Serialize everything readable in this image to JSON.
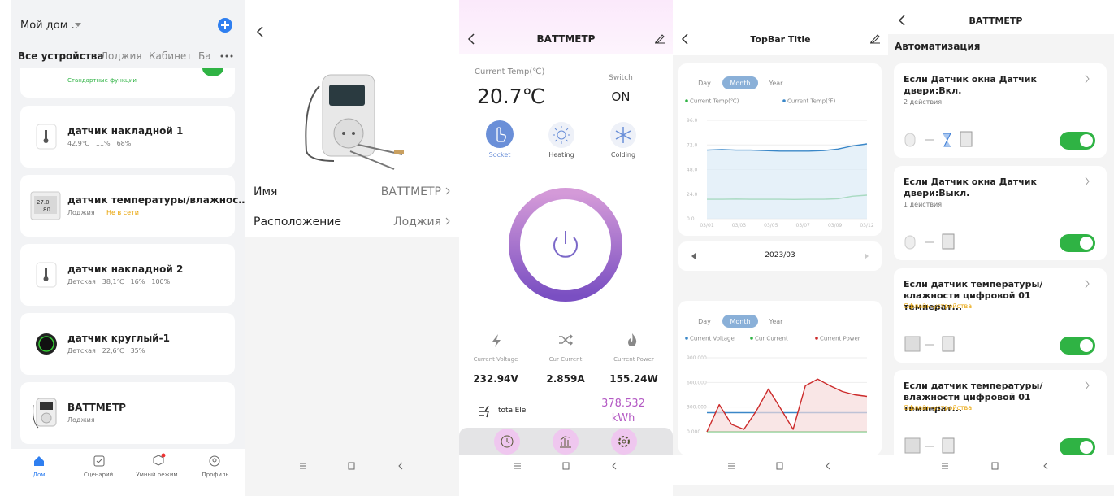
{
  "home_screen": {
    "home_name": "Мой дом ..",
    "tabs": [
      "Все устройства",
      "Лоджия",
      "Кабинет",
      "Ба"
    ],
    "devices": [
      {
        "subtitle": "Стандартные функции"
      },
      {
        "name": "датчик накладной 1",
        "readings": [
          "42,9℃",
          "11%",
          "68%"
        ]
      },
      {
        "name": "датчик температуры/влажнос…",
        "room": "Лоджия",
        "status": "Не в сети"
      },
      {
        "name": "датчик накладной 2",
        "room": "Детская",
        "readings": [
          "38,1℃",
          "16%",
          "100%"
        ]
      },
      {
        "name": "датчик круглый-1",
        "room": "Детская",
        "readings": [
          "22,6℃",
          "35%"
        ]
      },
      {
        "name": "ВАТТМЕТР",
        "room": "Лоджия"
      }
    ],
    "nav": [
      "Дом",
      "Сценарий",
      "Умный режим",
      "Профиль"
    ]
  },
  "device_info_screen": {
    "rows": [
      {
        "label": "Имя",
        "value": "ВАТТМЕТР"
      },
      {
        "label": "Расположение",
        "value": "Лоджия"
      }
    ]
  },
  "meter_screen": {
    "title": "ВАТТМЕТР",
    "temp_label": "Current Temp(℃)",
    "temp": "20.7℃",
    "switch_label": "Switch",
    "switch_state": "ON",
    "modes": [
      "Socket",
      "Heating",
      "Colding"
    ],
    "metrics": [
      {
        "label": "Current Voltage",
        "value": "232.94V"
      },
      {
        "label": "Cur Current",
        "value": "2.859A"
      },
      {
        "label": "Current Power",
        "value": "155.24W"
      }
    ],
    "total_label": "totalEle",
    "total_value": "378.532",
    "total_unit": "kWh"
  },
  "stats_screen": {
    "title": "TopBar Title",
    "date": "2023/03",
    "charts": [
      {
        "tabs": [
          "Day",
          "Month",
          "Year"
        ],
        "ylim": [
          0,
          96
        ],
        "yticks": [
          {
            "value": 96,
            "label": "96.0"
          },
          {
            "value": 72,
            "label": "72.0"
          },
          {
            "value": 48,
            "label": "48.0"
          },
          {
            "value": 24,
            "label": "24.0"
          },
          {
            "value": 0,
            "label": "0.0"
          }
        ],
        "x_labels": [
          "03/01",
          "03/03",
          "03/05",
          "03/07",
          "03/09",
          "03/12"
        ],
        "series": [
          {
            "name": "Current Temp(℃)",
            "color": "#2fb344",
            "values": [
              19,
              19,
              19.2,
              19,
              19,
              19,
              18.8,
              19,
              19,
              19.5,
              22,
              23
            ]
          },
          {
            "name": "Current Temp(℉)",
            "color": "#3a87c8",
            "values": [
              67,
              67.5,
              67,
              67,
              66.5,
              66,
              66,
              66,
              66.5,
              68,
              71,
              73
            ]
          }
        ]
      },
      {
        "tabs": [
          "Day",
          "Month",
          "Year"
        ],
        "ylim": [
          0,
          900
        ],
        "yticks": [
          {
            "value": 900,
            "label": "900.000"
          },
          {
            "value": 600,
            "label": "600.000"
          },
          {
            "value": 300,
            "label": "300.000"
          },
          {
            "value": 0,
            "label": "0.000"
          }
        ],
        "series": [
          {
            "name": "Current Voltage",
            "color": "#3a87c8",
            "values": [
              232,
              232,
              232,
              232,
              232,
              232,
              232,
              232,
              232,
              232,
              232,
              232,
              232,
              232
            ]
          },
          {
            "name": "Cur Current",
            "color": "#2fb344",
            "values": [
              2.9,
              2.9,
              2.9,
              2.9,
              2.9,
              2.9,
              2.9,
              2.9,
              2.9,
              2.9,
              2.9,
              2.9,
              2.9,
              2.9
            ]
          },
          {
            "name": "Current Power",
            "color": "#cc2a2a",
            "values": [
              0,
              330,
              90,
              30,
              250,
              520,
              280,
              30,
              560,
              640,
              560,
              490,
              450,
              430
            ]
          }
        ]
      }
    ]
  },
  "automation_screen": {
    "title": "ВАТТМЕТР",
    "section": "Автоматизация",
    "rules": [
      {
        "title": "Если Датчик окна Датчик двери:Вкл.",
        "subtitle": "2 действия"
      },
      {
        "title": "Если Датчик окна Датчик двери:Выкл.",
        "subtitle": "1 действия"
      },
      {
        "title": "Если датчик температуры/ влажности цифровой 01 температ...",
        "subtitle": "Офлайн-устройства"
      },
      {
        "title": "Если датчик температуры/ влажности цифровой 01 температ...",
        "subtitle": "Офлайн-устройства"
      }
    ]
  }
}
